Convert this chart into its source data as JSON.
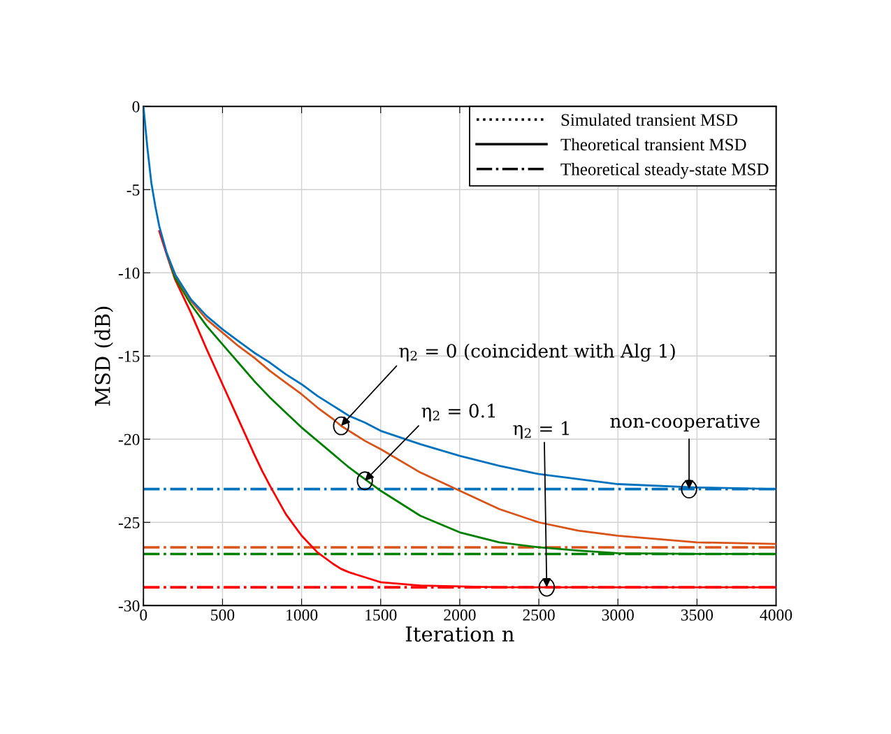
{
  "chart_data": {
    "type": "line",
    "xlabel": "Iteration n",
    "ylabel": "MSD (dB)",
    "x": [
      0,
      25,
      50,
      75,
      100,
      150,
      200,
      300,
      400,
      500,
      600,
      700,
      750,
      800,
      900,
      1000,
      1100,
      1200,
      1250,
      1300,
      1400,
      1500,
      1750,
      2000,
      2250,
      2500,
      2750,
      3000,
      3500,
      4000
    ],
    "xlim": [
      0,
      4000
    ],
    "xticks": [
      0,
      500,
      1000,
      1500,
      2000,
      2500,
      3000,
      3500,
      4000
    ],
    "ylim": [
      -30,
      0
    ],
    "yticks": [
      {
        "value": -30,
        "label": "-30"
      },
      {
        "value": -25,
        "label": "-25"
      },
      {
        "value": -20,
        "label": "-20"
      },
      {
        "value": -15,
        "label": "-15"
      },
      {
        "value": -10,
        "label": "-10"
      },
      {
        "value": -5,
        "label": "-5"
      },
      0
    ],
    "grid": true,
    "legend": "top right",
    "marker": "none",
    "series": [
      {
        "name": "Simulated transient MSD",
        "color": "#000000",
        "line_style": "dotted",
        "values": [
          null,
          null,
          null,
          null,
          null,
          null,
          null,
          null,
          null,
          null,
          null,
          null,
          null,
          null,
          null,
          null,
          null,
          null,
          null,
          null,
          null,
          null,
          null,
          null,
          null,
          null,
          null,
          null,
          null,
          null
        ]
      },
      {
        "name": "Theoretical transient MSD",
        "color": "#000000",
        "line_style": "solid",
        "values": [
          null,
          null,
          null,
          null,
          null,
          null,
          null,
          null,
          null,
          null,
          null,
          null,
          null,
          null,
          null,
          null,
          null,
          null,
          null,
          null,
          null,
          null,
          null,
          null,
          null,
          null,
          null,
          null,
          null,
          null
        ]
      },
      {
        "name": "Theoretical steady-state MSD",
        "color": "#000000",
        "line_style": "dashdot",
        "values": [
          null,
          null,
          null,
          null,
          null,
          null,
          null,
          null,
          null,
          null,
          null,
          null,
          null,
          null,
          null,
          null,
          null,
          null,
          null,
          null,
          null,
          null,
          null,
          null,
          null,
          null,
          null,
          null,
          null,
          null
        ]
      },
      {
        "color": "#0072bd",
        "line_style": "solid",
        "values": [
          0,
          -2.5,
          -4.6,
          -6.0,
          -7.2,
          -8.9,
          -10.1,
          -11.6,
          -12.6,
          -13.4,
          -14.1,
          -14.8,
          -15.1,
          -15.4,
          -16.1,
          -16.7,
          -17.4,
          -18.0,
          -18.3,
          -18.6,
          -19.0,
          -19.5,
          -20.3,
          -21.0,
          -21.6,
          -22.1,
          -22.4,
          -22.7,
          -22.9,
          -23.0
        ]
      },
      {
        "color": "#d95319",
        "line_style": "solid",
        "values": [
          null,
          null,
          null,
          null,
          null,
          -8.9,
          -10.1,
          -11.7,
          -12.8,
          -13.6,
          -14.4,
          -15.1,
          -15.5,
          -15.9,
          -16.6,
          -17.3,
          -18.1,
          -18.8,
          -19.2,
          -19.5,
          -20.1,
          -20.6,
          -22.0,
          -23.1,
          -24.2,
          -25.0,
          -25.5,
          -25.8,
          -26.2,
          -26.3
        ]
      },
      {
        "color": "#008000",
        "line_style": "solid",
        "values": [
          null,
          null,
          null,
          null,
          null,
          -8.9,
          -10.3,
          -11.9,
          -13.2,
          -14.3,
          -15.4,
          -16.5,
          -17.0,
          -17.5,
          -18.4,
          -19.3,
          -20.1,
          -20.9,
          -21.3,
          -21.7,
          -22.4,
          -23.1,
          -24.6,
          -25.6,
          -26.2,
          -26.5,
          -26.7,
          -26.85,
          -26.9,
          -26.9
        ]
      },
      {
        "color": "#ff0000",
        "line_style": "solid",
        "values": [
          null,
          null,
          null,
          null,
          -7.5,
          -9.0,
          -10.4,
          -12.4,
          -14.6,
          -16.7,
          -18.8,
          -20.9,
          -21.9,
          -22.8,
          -24.5,
          -25.8,
          -26.8,
          -27.5,
          -27.8,
          -28.0,
          -28.3,
          -28.6,
          -28.8,
          -28.85,
          -28.9,
          -28.9,
          -28.9,
          -28.9,
          -28.9,
          -28.9
        ]
      }
    ],
    "ref_lines": [
      {
        "axis": "y",
        "value": -23.0,
        "color": "#0072bd",
        "line_style": "dashdot"
      },
      {
        "axis": "y",
        "value": -26.5,
        "color": "#d95319",
        "line_style": "dashdot"
      },
      {
        "axis": "y",
        "value": -26.9,
        "color": "#008000",
        "line_style": "dashdot"
      },
      {
        "axis": "y",
        "value": -28.9,
        "color": "#ff0000",
        "line_style": "dashdot"
      }
    ],
    "annotations": [
      {
        "text": "η$_{2}$ = 0 (coincident with Alg 1)",
        "x": 1250,
        "y": -19.2
      },
      {
        "text": "η$_{2}$ = 0.1",
        "x": 1400,
        "y": -22.5
      },
      {
        "text": "η$_{2}$ = 1",
        "x": 2550,
        "y": -28.9
      },
      {
        "text": "non-cooperative",
        "x": 3450,
        "y": -23.0
      }
    ]
  }
}
